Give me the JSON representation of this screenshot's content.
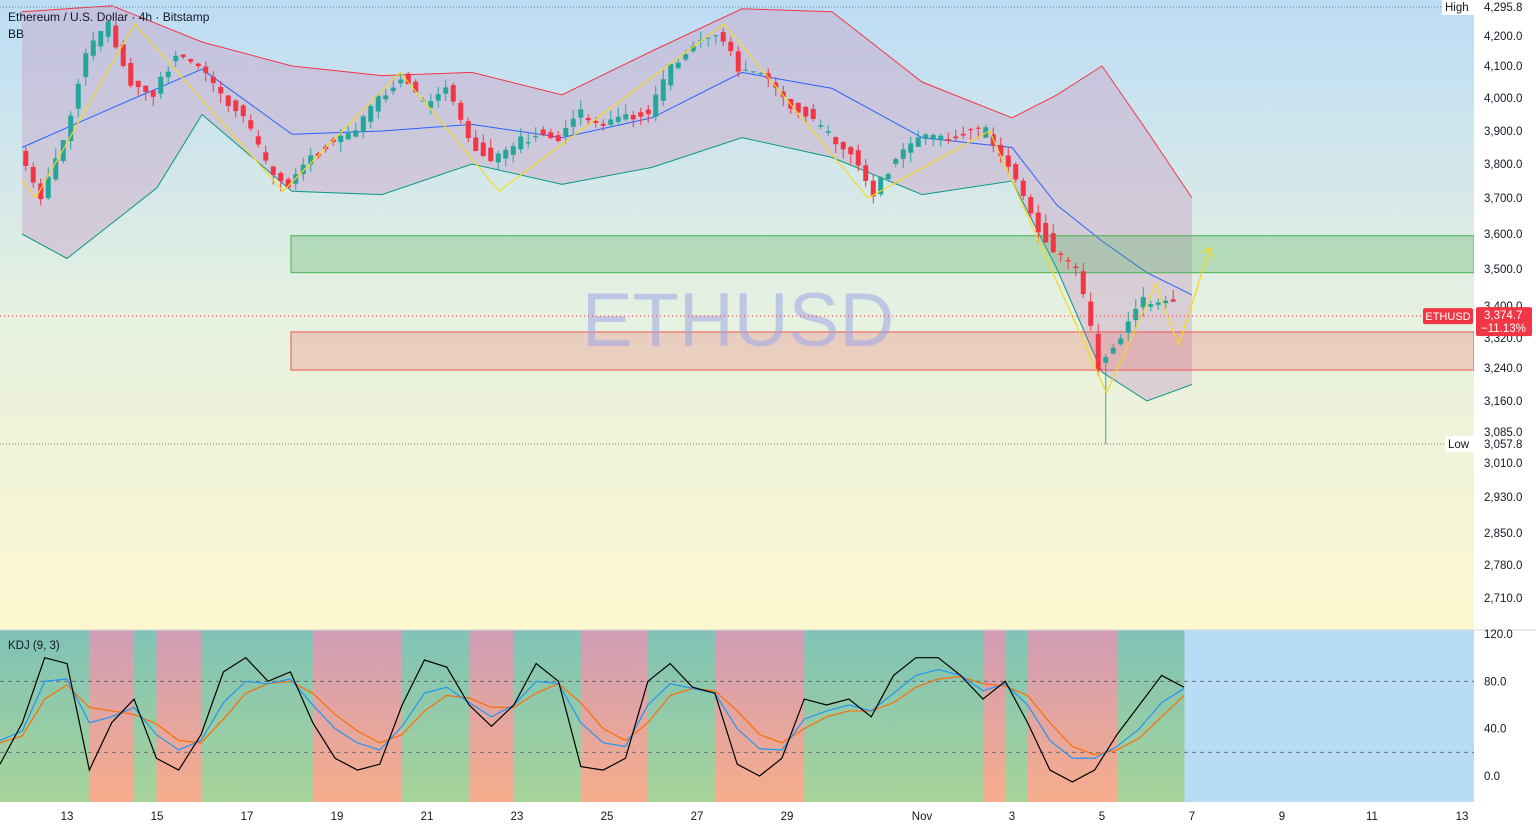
{
  "header": {
    "symbol_title": "Ethereum / U.S. Dollar · 4h · Bitstamp",
    "indicator": "BB"
  },
  "watermark": "ETHUSD",
  "price_axis": {
    "high_label": "High",
    "high_value": "4,295.8",
    "low_label": "Low",
    "low_value": "3,057.8",
    "ticks": [
      "4,200.0",
      "4,100.0",
      "4,000.0",
      "3,900.0",
      "3,800.0",
      "3,700.0",
      "3,600.0",
      "3,500.0",
      "3,400.0",
      "3,320.0",
      "3,240.0",
      "3,160.0",
      "3,085.0",
      "3,010.0",
      "2,930.0",
      "2,850.0",
      "2,780.0",
      "2,710.0"
    ],
    "last": {
      "symbol": "ETHUSD",
      "price": "3,374.7",
      "change": "−11.13%"
    }
  },
  "kdj": {
    "title": "KDJ (9, 3)",
    "ticks": [
      "120.0",
      "80.0",
      "40.0",
      "0.0"
    ]
  },
  "time_axis": {
    "labels": [
      "13",
      "15",
      "17",
      "19",
      "21",
      "23",
      "25",
      "27",
      "29",
      "Nov",
      "3",
      "5",
      "7",
      "9",
      "11",
      "13"
    ]
  },
  "colors": {
    "up": "#26a69a",
    "down": "#f23645",
    "bb_upper": "#f23645",
    "bb_basis": "#2962ff",
    "bb_lower": "#089981",
    "zigzag": "#f5d922",
    "support_zone": "#4caf50",
    "resistance_zone": "#ef5350",
    "k_line": "#2196f3",
    "d_line": "#ff6d00",
    "j_line": "#000000"
  },
  "chart_data": [
    {
      "type": "candlestick",
      "title": "Ethereum / U.S. Dollar · 4h · Bitstamp",
      "ylim": [
        2660,
        4330
      ],
      "grid": false,
      "x_range_days": [
        "Oct 12",
        "Nov 13"
      ],
      "high": 4295.8,
      "low": 3057.8,
      "last_price": 3374.7,
      "change_pct": -11.13,
      "zones": [
        {
          "kind": "support",
          "from": 3490,
          "to": 3595,
          "start": "Oct 18"
        },
        {
          "kind": "resistance",
          "from": 3235,
          "to": 3335,
          "start": "Oct 18"
        }
      ],
      "series": [
        {
          "name": "Price",
          "points": [
            [
              "Oct 12",
              3850
            ],
            [
              "Oct 12.5",
              3700
            ],
            [
              "Oct 13",
              3860
            ],
            [
              "Oct 13.5",
              4150
            ],
            [
              "Oct 14",
              4240
            ],
            [
              "Oct 14.5",
              4050
            ],
            [
              "Oct 15",
              4000
            ],
            [
              "Oct 15.5",
              4150
            ],
            [
              "Oct 16",
              4100
            ],
            [
              "Oct 16.5",
              4000
            ],
            [
              "Oct 17",
              3950
            ],
            [
              "Oct 17.5",
              3800
            ],
            [
              "Oct 18",
              3740
            ],
            [
              "Oct 18.5",
              3820
            ],
            [
              "Oct 19",
              3880
            ],
            [
              "Oct 19.5",
              3900
            ],
            [
              "Oct 20",
              3990
            ],
            [
              "Oct 20.5",
              4060
            ],
            [
              "Oct 21",
              3980
            ],
            [
              "Oct 21.5",
              4040
            ],
            [
              "Oct 22",
              3870
            ],
            [
              "Oct 22.5",
              3820
            ],
            [
              "Oct 23",
              3850
            ],
            [
              "Oct 23.5",
              3900
            ],
            [
              "Oct 24",
              3870
            ],
            [
              "Oct 24.5",
              3950
            ],
            [
              "Oct 25",
              3920
            ],
            [
              "Oct 25.5",
              3940
            ],
            [
              "Oct 26",
              3960
            ],
            [
              "Oct 26.5",
              4100
            ],
            [
              "Oct 27",
              4180
            ],
            [
              "Oct 27.5",
              4200
            ],
            [
              "Oct 28",
              4100
            ],
            [
              "Oct 28.5",
              4080
            ],
            [
              "Oct 29",
              3990
            ],
            [
              "Oct 29.5",
              3950
            ],
            [
              "Oct 30",
              3890
            ],
            [
              "Oct 30.5",
              3840
            ],
            [
              "Oct 31",
              3700
            ],
            [
              "Oct 31.5",
              3830
            ],
            [
              "Nov 1",
              3880
            ],
            [
              "Nov 1.5",
              3870
            ],
            [
              "Nov 2",
              3890
            ],
            [
              "Nov 2.5",
              3900
            ],
            [
              "Nov 3",
              3800
            ],
            [
              "Nov 3.5",
              3650
            ],
            [
              "Nov 4",
              3560
            ],
            [
              "Nov 4.5",
              3500
            ],
            [
              "Nov 5",
              3250
            ],
            [
              "Nov 5.5",
              3320
            ],
            [
              "Nov 6",
              3410
            ],
            [
              "Nov 6.5",
              3420
            ],
            [
              "Nov 7",
              3374.7
            ]
          ]
        },
        {
          "name": "BB",
          "upper": [
            [
              "Oct 12",
              4280
            ],
            [
              "Oct 14",
              4300
            ],
            [
              "Oct 16",
              4180
            ],
            [
              "Oct 18",
              4100
            ],
            [
              "Oct 20",
              4070
            ],
            [
              "Oct 22",
              4080
            ],
            [
              "Oct 24",
              4010
            ],
            [
              "Oct 26",
              4150
            ],
            [
              "Oct 28",
              4290
            ],
            [
              "Oct 30",
              4280
            ],
            [
              "Nov 1",
              4050
            ],
            [
              "Nov 3",
              3940
            ],
            [
              "Nov 4",
              4010
            ],
            [
              "Nov 5",
              4100
            ],
            [
              "Nov 6",
              3900
            ],
            [
              "Nov 7",
              3700
            ]
          ],
          "basis": [
            [
              "Oct 12",
              3850
            ],
            [
              "Oct 14",
              3970
            ],
            [
              "Oct 16",
              4090
            ],
            [
              "Oct 18",
              3890
            ],
            [
              "Oct 20",
              3900
            ],
            [
              "Oct 22",
              3920
            ],
            [
              "Oct 24",
              3880
            ],
            [
              "Oct 26",
              3940
            ],
            [
              "Oct 28",
              4080
            ],
            [
              "Oct 30",
              4030
            ],
            [
              "Nov 1",
              3880
            ],
            [
              "Nov 3",
              3850
            ],
            [
              "Nov 4",
              3680
            ],
            [
              "Nov 5",
              3580
            ],
            [
              "Nov 6",
              3490
            ],
            [
              "Nov 7",
              3430
            ]
          ],
          "lower": [
            [
              "Oct 12",
              3600
            ],
            [
              "Oct 13",
              3530
            ],
            [
              "Oct 15",
              3730
            ],
            [
              "Oct 16",
              3950
            ],
            [
              "Oct 18",
              3720
            ],
            [
              "Oct 20",
              3710
            ],
            [
              "Oct 22",
              3800
            ],
            [
              "Oct 24",
              3740
            ],
            [
              "Oct 26",
              3790
            ],
            [
              "Oct 28",
              3880
            ],
            [
              "Oct 30",
              3820
            ],
            [
              "Nov 1",
              3710
            ],
            [
              "Nov 3",
              3750
            ],
            [
              "Nov 4",
              3500
            ],
            [
              "Nov 5",
              3230
            ],
            [
              "Nov 6",
              3160
            ],
            [
              "Nov 7",
              3200
            ]
          ]
        }
      ]
    },
    {
      "type": "line",
      "title": "KDJ (9, 3)",
      "ylim": [
        -25,
        125
      ],
      "ref_lines": [
        80,
        20
      ],
      "series": [
        {
          "name": "K",
          "values": [
            30,
            38,
            80,
            82,
            45,
            50,
            58,
            35,
            22,
            30,
            62,
            80,
            78,
            82,
            60,
            40,
            28,
            22,
            42,
            70,
            75,
            62,
            50,
            60,
            80,
            78,
            45,
            28,
            25,
            60,
            78,
            74,
            70,
            40,
            23,
            22,
            48,
            55,
            60,
            55,
            70,
            85,
            90,
            85,
            72,
            78,
            60,
            30,
            15,
            15,
            25,
            40,
            62,
            74
          ]
        },
        {
          "name": "D",
          "values": [
            28,
            34,
            65,
            77,
            58,
            55,
            52,
            44,
            30,
            28,
            48,
            70,
            78,
            80,
            70,
            52,
            38,
            28,
            35,
            55,
            68,
            66,
            58,
            58,
            70,
            78,
            62,
            40,
            30,
            45,
            68,
            74,
            72,
            55,
            35,
            28,
            40,
            50,
            55,
            55,
            62,
            75,
            82,
            84,
            78,
            76,
            68,
            45,
            25,
            18,
            22,
            32,
            50,
            68
          ]
        },
        {
          "name": "J",
          "values": [
            10,
            45,
            100,
            95,
            5,
            45,
            65,
            15,
            5,
            35,
            88,
            100,
            80,
            88,
            45,
            15,
            5,
            10,
            60,
            98,
            92,
            60,
            42,
            60,
            95,
            80,
            8,
            5,
            15,
            80,
            95,
            75,
            70,
            10,
            0,
            15,
            65,
            60,
            65,
            50,
            85,
            100,
            100,
            85,
            65,
            80,
            45,
            5,
            -5,
            5,
            35,
            60,
            85,
            75
          ]
        }
      ]
    }
  ]
}
